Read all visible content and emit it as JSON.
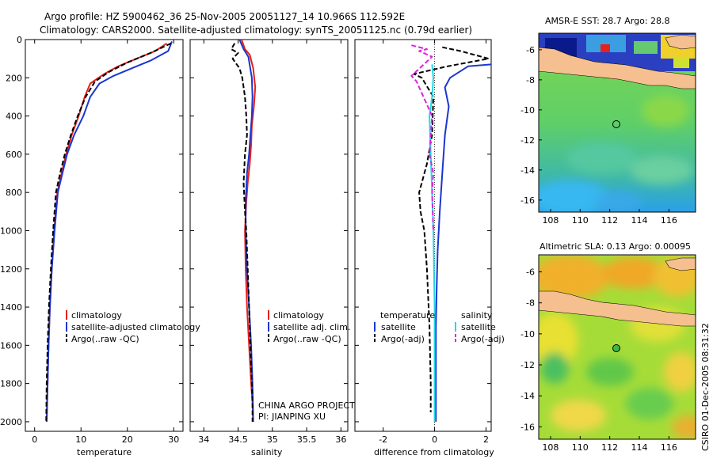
{
  "header": {
    "line1": "Argo profile: HZ 5900462_36 25-Nov-2005 20051127_14 10.966S 112.592E",
    "line2": "Climatology: CARS2000. Satellite-adjusted climatology: synTS_20051125.nc (0.79d earlier)"
  },
  "footer": {
    "stamp": "CSIRO 01-Dec-2005 08:31:32"
  },
  "colors": {
    "red": "#e8201c",
    "blue": "#1a36d0",
    "black": "#000000",
    "cyan": "#22d8e6",
    "magenta": "#e020e0"
  },
  "chart_data": [
    {
      "type": "line",
      "title": "",
      "xlabel": "temperature",
      "ylabel": "",
      "xlim": [
        -2,
        32
      ],
      "ylim": [
        2050,
        0
      ],
      "xticks": [
        "0",
        "10",
        "20",
        "30"
      ],
      "yticks": [
        "0",
        "200",
        "400",
        "600",
        "800",
        "1000",
        "1200",
        "1400",
        "1600",
        "1800",
        "2000"
      ],
      "legend_pos": "lower-right",
      "series": [
        {
          "name": "climatology",
          "color": "#e8201c",
          "dash": "solid",
          "x": [
            28.5,
            26,
            22,
            18,
            15,
            12,
            10.8,
            9.5,
            8.0,
            6.8,
            5.8,
            4.9,
            4.2,
            3.7,
            3.3,
            3.0,
            2.8,
            2.7,
            2.6
          ],
          "y": [
            20,
            60,
            100,
            140,
            180,
            230,
            300,
            400,
            500,
            600,
            700,
            800,
            1000,
            1200,
            1400,
            1600,
            1800,
            1900,
            2000
          ]
        },
        {
          "name": "satellite-adjusted climatology",
          "color": "#1a36d0",
          "dash": "solid",
          "x": [
            29.6,
            28.8,
            25,
            21,
            17,
            14,
            12,
            10.5,
            8.5,
            7.0,
            6.0,
            5.0,
            4.3,
            3.7,
            3.3,
            3.0,
            2.8,
            2.7,
            2.6
          ],
          "y": [
            10,
            60,
            110,
            150,
            190,
            230,
            300,
            400,
            500,
            600,
            700,
            800,
            1000,
            1200,
            1400,
            1600,
            1800,
            1900,
            2000
          ]
        },
        {
          "name": "Argo(..raw -QC)",
          "color": "#000000",
          "dash": "dash",
          "x": [
            29.4,
            25,
            20,
            16,
            13,
            11,
            9.3,
            7.8,
            6.5,
            5.5,
            4.6,
            4.0,
            3.5,
            3.1,
            2.8,
            2.6,
            2.5
          ],
          "y": [
            20,
            70,
            120,
            170,
            220,
            300,
            400,
            500,
            600,
            700,
            800,
            1000,
            1200,
            1400,
            1600,
            1800,
            2000
          ]
        }
      ],
      "legend": [
        "climatology",
        "satellite-adjusted climatology",
        "Argo(..raw -QC)"
      ]
    },
    {
      "type": "line",
      "title": "",
      "xlabel": "salinity",
      "ylabel": "",
      "xlim": [
        33.8,
        36.1
      ],
      "ylim": [
        2050,
        0
      ],
      "xticks": [
        "34",
        "34.5",
        "35",
        "35.5",
        "36"
      ],
      "legend_pos": "lower-right",
      "annotation": [
        "CHINA ARGO PROJECT",
        "PI: JIANPING XU"
      ],
      "series": [
        {
          "name": "climatology",
          "color": "#e8201c",
          "dash": "solid",
          "x": [
            34.55,
            34.6,
            34.67,
            34.72,
            34.75,
            34.73,
            34.7,
            34.69,
            34.67,
            34.64,
            34.62,
            34.6,
            34.61,
            34.63,
            34.66,
            34.69,
            34.71,
            34.72
          ],
          "y": [
            0,
            50,
            80,
            150,
            250,
            350,
            450,
            550,
            650,
            750,
            850,
            1000,
            1200,
            1400,
            1600,
            1800,
            1900,
            2000
          ]
        },
        {
          "name": "satellite adj. clim.",
          "color": "#1a36d0",
          "dash": "solid",
          "x": [
            34.52,
            34.58,
            34.65,
            34.7,
            34.71,
            34.7,
            34.68,
            34.66,
            34.63,
            34.61,
            34.61,
            34.63,
            34.66,
            34.69,
            34.71,
            34.72
          ],
          "y": [
            0,
            50,
            90,
            200,
            300,
            400,
            500,
            600,
            700,
            850,
            1000,
            1200,
            1400,
            1600,
            1800,
            2000
          ]
        },
        {
          "name": "Argo(..raw -QC)",
          "color": "#000000",
          "dash": "dash",
          "x": [
            34.45,
            34.4,
            34.5,
            34.42,
            34.52,
            34.56,
            34.6,
            34.62,
            34.63,
            34.6,
            34.58,
            34.6,
            34.62,
            34.64,
            34.66,
            34.68,
            34.7,
            34.71,
            34.71
          ],
          "y": [
            20,
            50,
            70,
            100,
            150,
            200,
            300,
            400,
            500,
            600,
            750,
            900,
            1000,
            1200,
            1400,
            1600,
            1800,
            1900,
            2000
          ]
        }
      ],
      "legend": [
        "climatology",
        "satellite adj. clim.",
        "Argo(..raw -QC)"
      ]
    },
    {
      "type": "line",
      "title": "",
      "xlabel": "difference from climatology",
      "ylabel": "",
      "xlim": [
        -3.1,
        2.2
      ],
      "ylim": [
        2050,
        0
      ],
      "xticks": [
        "-2",
        "0",
        "2"
      ],
      "legend_pos": "lower-right",
      "legend_titles": [
        "temperature",
        "salinity"
      ],
      "series": [
        {
          "name": "satellite (temperature)",
          "color": "#1a36d0",
          "dash": "solid",
          "x": [
            2.2,
            1.3,
            0.6,
            0.4,
            0.55,
            0.4,
            0.3,
            0.2,
            0.12,
            0.08,
            0.05,
            0.05,
            0.05
          ],
          "y": [
            130,
            140,
            200,
            250,
            350,
            500,
            700,
            900,
            1100,
            1300,
            1500,
            1800,
            2000
          ]
        },
        {
          "name": "Argo(-adj) (temperature)",
          "color": "#000000",
          "dash": "dash",
          "x": [
            0.3,
            1.0,
            2.1,
            0.5,
            -0.8,
            -0.5,
            -0.05,
            -0.1,
            -0.3,
            -0.6,
            -0.55,
            -0.4,
            -0.3,
            -0.2,
            -0.15,
            -0.15
          ],
          "y": [
            40,
            60,
            100,
            140,
            180,
            200,
            300,
            500,
            650,
            800,
            900,
            1000,
            1200,
            1500,
            1800,
            1950
          ]
        },
        {
          "name": "satellite (salinity)",
          "color": "#22d8e6",
          "dash": "solid",
          "x": [
            -0.1,
            -0.05,
            -0.1,
            -0.2,
            -0.15,
            -0.1,
            -0.05,
            0.0,
            0.0,
            0.0
          ],
          "y": [
            130,
            200,
            300,
            400,
            600,
            800,
            1000,
            1400,
            1800,
            2000
          ]
        },
        {
          "name": "Argo(-adj) (salinity)",
          "color": "#e020e0",
          "dash": "dash",
          "x": [
            -0.9,
            -0.3,
            -0.6,
            -0.1,
            -0.9,
            -0.7,
            -0.1,
            -0.2,
            -0.05,
            -0.1,
            -0.05
          ],
          "y": [
            30,
            50,
            60,
            90,
            190,
            220,
            400,
            600,
            700,
            800,
            1000
          ]
        }
      ],
      "legend": [
        "satellite",
        "Argo(-adj)",
        "satellite",
        "Argo(-adj)"
      ]
    },
    {
      "type": "heatmap",
      "title": "AMSR-E SST: 28.7 Argo: 28.8",
      "xlabel": "",
      "ylabel": "",
      "xlim": [
        107.2,
        117.8
      ],
      "ylim": [
        -16.8,
        -4.9
      ],
      "xticks": [
        "108",
        "110",
        "112",
        "114",
        "116"
      ],
      "yticks": [
        "-6",
        "-8",
        "-10",
        "-12",
        "-14",
        "-16"
      ],
      "marker": {
        "lon": 112.59,
        "lat": -10.97
      }
    },
    {
      "type": "heatmap",
      "title": "Altimetric SLA: 0.13 Argo: 0.00095",
      "xlabel": "",
      "ylabel": "",
      "xlim": [
        107.2,
        117.8
      ],
      "ylim": [
        -16.8,
        -4.9
      ],
      "xticks": [
        "108",
        "110",
        "112",
        "114",
        "116"
      ],
      "yticks": [
        "-6",
        "-8",
        "-10",
        "-12",
        "-14",
        "-16"
      ],
      "marker": {
        "lon": 112.59,
        "lat": -10.97
      }
    }
  ]
}
